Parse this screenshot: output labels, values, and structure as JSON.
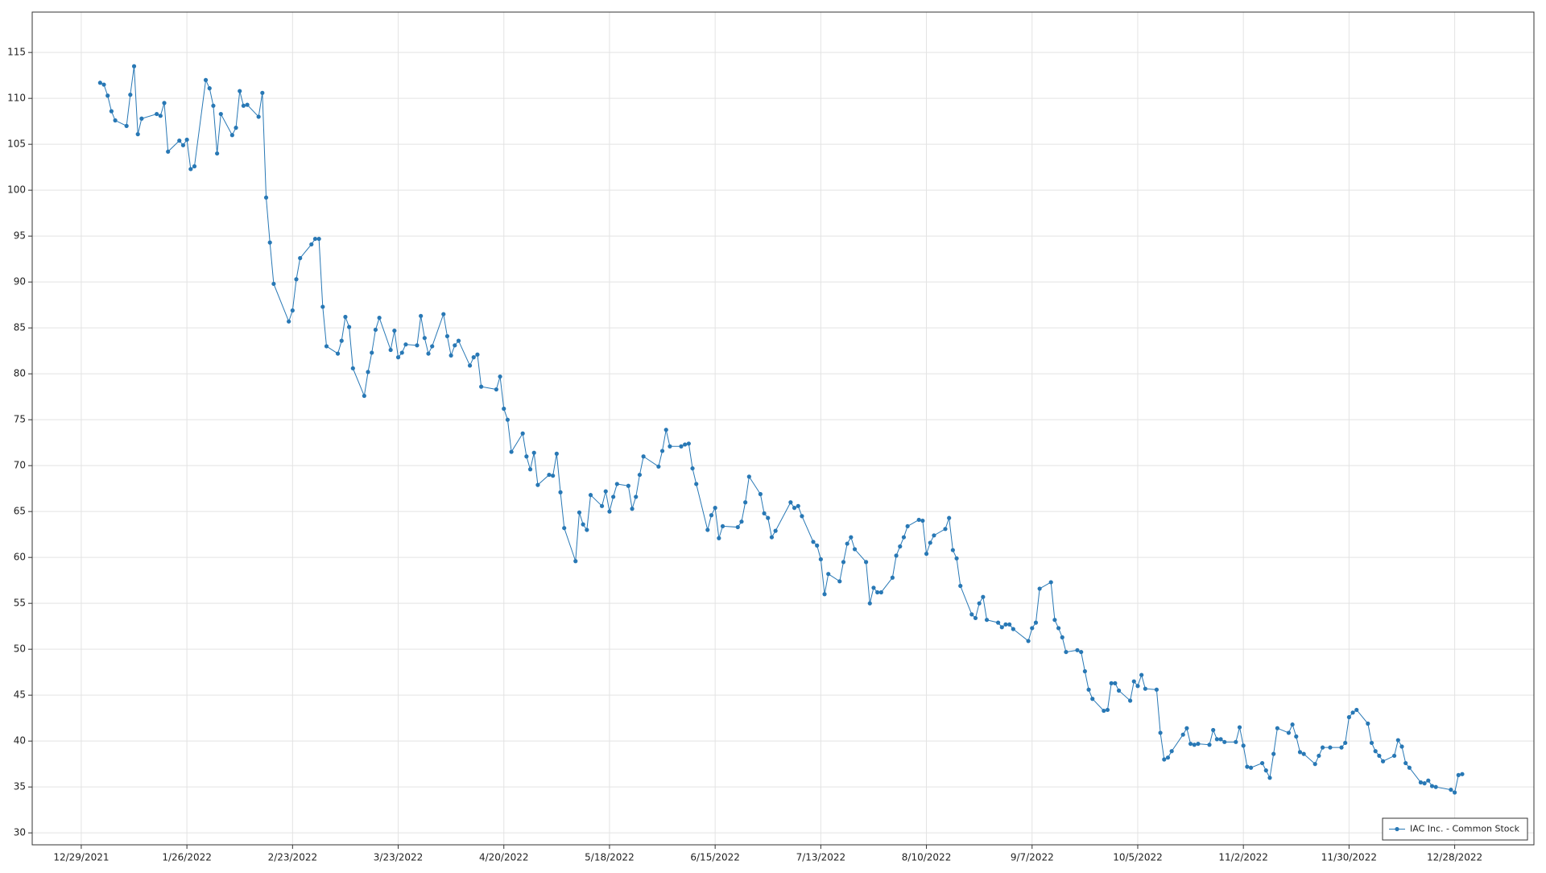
{
  "chart_data": {
    "type": "line",
    "x": [
      "2022-01-03",
      "2022-01-04",
      "2022-01-05",
      "2022-01-06",
      "2022-01-07",
      "2022-01-10",
      "2022-01-11",
      "2022-01-12",
      "2022-01-13",
      "2022-01-14",
      "2022-01-18",
      "2022-01-19",
      "2022-01-20",
      "2022-01-21",
      "2022-01-24",
      "2022-01-25",
      "2022-01-26",
      "2022-01-27",
      "2022-01-28",
      "2022-01-31",
      "2022-02-01",
      "2022-02-02",
      "2022-02-03",
      "2022-02-04",
      "2022-02-07",
      "2022-02-08",
      "2022-02-09",
      "2022-02-10",
      "2022-02-11",
      "2022-02-14",
      "2022-02-15",
      "2022-02-16",
      "2022-02-17",
      "2022-02-18",
      "2022-02-22",
      "2022-02-23",
      "2022-02-24",
      "2022-02-25",
      "2022-02-28",
      "2022-03-01",
      "2022-03-02",
      "2022-03-03",
      "2022-03-04",
      "2022-03-07",
      "2022-03-08",
      "2022-03-09",
      "2022-03-10",
      "2022-03-11",
      "2022-03-14",
      "2022-03-15",
      "2022-03-16",
      "2022-03-17",
      "2022-03-18",
      "2022-03-21",
      "2022-03-22",
      "2022-03-23",
      "2022-03-24",
      "2022-03-25",
      "2022-03-28",
      "2022-03-29",
      "2022-03-30",
      "2022-03-31",
      "2022-04-01",
      "2022-04-04",
      "2022-04-05",
      "2022-04-06",
      "2022-04-07",
      "2022-04-08",
      "2022-04-11",
      "2022-04-12",
      "2022-04-13",
      "2022-04-14",
      "2022-04-18",
      "2022-04-19",
      "2022-04-20",
      "2022-04-21",
      "2022-04-22",
      "2022-04-25",
      "2022-04-26",
      "2022-04-27",
      "2022-04-28",
      "2022-04-29",
      "2022-05-02",
      "2022-05-03",
      "2022-05-04",
      "2022-05-05",
      "2022-05-06",
      "2022-05-09",
      "2022-05-10",
      "2022-05-11",
      "2022-05-12",
      "2022-05-13",
      "2022-05-16",
      "2022-05-17",
      "2022-05-18",
      "2022-05-19",
      "2022-05-20",
      "2022-05-23",
      "2022-05-24",
      "2022-05-25",
      "2022-05-26",
      "2022-05-27",
      "2022-05-31",
      "2022-06-01",
      "2022-06-02",
      "2022-06-03",
      "2022-06-06",
      "2022-06-07",
      "2022-06-08",
      "2022-06-09",
      "2022-06-10",
      "2022-06-13",
      "2022-06-14",
      "2022-06-15",
      "2022-06-16",
      "2022-06-17",
      "2022-06-21",
      "2022-06-22",
      "2022-06-23",
      "2022-06-24",
      "2022-06-27",
      "2022-06-28",
      "2022-06-29",
      "2022-06-30",
      "2022-07-01",
      "2022-07-05",
      "2022-07-06",
      "2022-07-07",
      "2022-07-08",
      "2022-07-11",
      "2022-07-12",
      "2022-07-13",
      "2022-07-14",
      "2022-07-15",
      "2022-07-18",
      "2022-07-19",
      "2022-07-20",
      "2022-07-21",
      "2022-07-22",
      "2022-07-25",
      "2022-07-26",
      "2022-07-27",
      "2022-07-28",
      "2022-07-29",
      "2022-08-01",
      "2022-08-02",
      "2022-08-03",
      "2022-08-04",
      "2022-08-05",
      "2022-08-08",
      "2022-08-09",
      "2022-08-10",
      "2022-08-11",
      "2022-08-12",
      "2022-08-15",
      "2022-08-16",
      "2022-08-17",
      "2022-08-18",
      "2022-08-19",
      "2022-08-22",
      "2022-08-23",
      "2022-08-24",
      "2022-08-25",
      "2022-08-26",
      "2022-08-29",
      "2022-08-30",
      "2022-08-31",
      "2022-09-01",
      "2022-09-02",
      "2022-09-06",
      "2022-09-07",
      "2022-09-08",
      "2022-09-09",
      "2022-09-12",
      "2022-09-13",
      "2022-09-14",
      "2022-09-15",
      "2022-09-16",
      "2022-09-19",
      "2022-09-20",
      "2022-09-21",
      "2022-09-22",
      "2022-09-23",
      "2022-09-26",
      "2022-09-27",
      "2022-09-28",
      "2022-09-29",
      "2022-09-30",
      "2022-10-03",
      "2022-10-04",
      "2022-10-05",
      "2022-10-06",
      "2022-10-07",
      "2022-10-10",
      "2022-10-11",
      "2022-10-12",
      "2022-10-13",
      "2022-10-14",
      "2022-10-17",
      "2022-10-18",
      "2022-10-19",
      "2022-10-20",
      "2022-10-21",
      "2022-10-24",
      "2022-10-25",
      "2022-10-26",
      "2022-10-27",
      "2022-10-28",
      "2022-10-31",
      "2022-11-01",
      "2022-11-02",
      "2022-11-03",
      "2022-11-04",
      "2022-11-07",
      "2022-11-08",
      "2022-11-09",
      "2022-11-10",
      "2022-11-11",
      "2022-11-14",
      "2022-11-15",
      "2022-11-16",
      "2022-11-17",
      "2022-11-18",
      "2022-11-21",
      "2022-11-22",
      "2022-11-23",
      "2022-11-25",
      "2022-11-28",
      "2022-11-29",
      "2022-11-30",
      "2022-12-01",
      "2022-12-02",
      "2022-12-05",
      "2022-12-06",
      "2022-12-07",
      "2022-12-08",
      "2022-12-09",
      "2022-12-12",
      "2022-12-13",
      "2022-12-14",
      "2022-12-15",
      "2022-12-16",
      "2022-12-19",
      "2022-12-20",
      "2022-12-21",
      "2022-12-22",
      "2022-12-23",
      "2022-12-27",
      "2022-12-28",
      "2022-12-29",
      "2022-12-30"
    ],
    "series": [
      {
        "name": "IAC Inc. - Common Stock",
        "color": "#2878b5",
        "values": [
          111.7,
          111.5,
          110.3,
          108.6,
          107.6,
          107.0,
          110.4,
          113.5,
          106.1,
          107.8,
          108.3,
          108.1,
          109.5,
          104.2,
          105.4,
          104.9,
          105.5,
          102.3,
          102.6,
          112.0,
          111.1,
          109.2,
          104.0,
          108.3,
          106.0,
          106.8,
          110.8,
          109.2,
          109.3,
          108.0,
          110.6,
          99.2,
          94.3,
          89.8,
          85.7,
          86.9,
          90.3,
          92.6,
          94.1,
          94.7,
          94.7,
          87.3,
          83.0,
          82.2,
          83.6,
          86.2,
          85.1,
          80.6,
          77.6,
          80.2,
          82.3,
          84.8,
          86.1,
          82.6,
          84.7,
          81.8,
          82.3,
          83.2,
          83.1,
          86.3,
          83.9,
          82.2,
          83.0,
          86.5,
          84.1,
          82.0,
          83.1,
          83.6,
          80.9,
          81.8,
          82.1,
          78.6,
          78.3,
          79.7,
          76.2,
          75.0,
          71.5,
          73.5,
          71.0,
          69.6,
          71.4,
          67.9,
          69.0,
          68.9,
          71.3,
          67.1,
          63.2,
          59.6,
          64.9,
          63.6,
          63.0,
          66.8,
          65.6,
          67.2,
          65.0,
          66.6,
          68.0,
          67.8,
          65.3,
          66.6,
          69.0,
          71.0,
          69.9,
          71.6,
          73.9,
          72.1,
          72.1,
          72.3,
          72.4,
          69.7,
          68.0,
          63.0,
          64.6,
          65.4,
          62.1,
          63.4,
          63.3,
          63.9,
          66.0,
          68.8,
          66.9,
          64.8,
          64.3,
          62.2,
          62.9,
          66.0,
          65.4,
          65.6,
          64.5,
          61.7,
          61.3,
          59.8,
          56.0,
          58.2,
          57.4,
          59.5,
          61.5,
          62.2,
          60.9,
          59.5,
          55.0,
          56.7,
          56.2,
          56.2,
          57.8,
          60.2,
          61.2,
          62.2,
          63.4,
          64.1,
          64.0,
          60.4,
          61.6,
          62.4,
          63.1,
          64.3,
          60.8,
          59.9,
          56.9,
          53.8,
          53.4,
          55.0,
          55.7,
          53.2,
          52.9,
          52.4,
          52.7,
          52.7,
          52.2,
          50.9,
          52.3,
          52.9,
          56.6,
          57.3,
          53.2,
          52.3,
          51.3,
          49.7,
          49.9,
          49.7,
          47.6,
          45.6,
          44.6,
          43.3,
          43.4,
          46.3,
          46.3,
          45.5,
          44.4,
          46.5,
          46.0,
          47.2,
          45.7,
          45.6,
          40.9,
          38.0,
          38.2,
          38.9,
          40.7,
          41.4,
          39.7,
          39.6,
          39.7,
          39.6,
          41.2,
          40.2,
          40.2,
          39.9,
          39.9,
          41.5,
          39.5,
          37.2,
          37.1,
          37.6,
          36.8,
          36.0,
          38.6,
          41.4,
          40.9,
          41.8,
          40.5,
          38.8,
          38.6,
          37.5,
          38.4,
          39.3,
          39.3,
          39.3,
          39.8,
          42.6,
          43.1,
          43.4,
          41.9,
          39.8,
          38.9,
          38.4,
          37.8,
          38.4,
          40.1,
          39.4,
          37.6,
          37.1,
          35.5,
          35.4,
          35.7,
          35.1,
          35.0,
          34.7,
          34.4,
          36.3,
          36.4
        ]
      }
    ],
    "xlim": [
      "2021-12-16",
      "2023-01-18"
    ],
    "xticks": [
      {
        "value": "2021-12-29",
        "label": "12/29/2021"
      },
      {
        "value": "2022-01-26",
        "label": "1/26/2022"
      },
      {
        "value": "2022-02-23",
        "label": "2/23/2022"
      },
      {
        "value": "2022-03-23",
        "label": "3/23/2022"
      },
      {
        "value": "2022-04-20",
        "label": "4/20/2022"
      },
      {
        "value": "2022-05-18",
        "label": "5/18/2022"
      },
      {
        "value": "2022-06-15",
        "label": "6/15/2022"
      },
      {
        "value": "2022-07-13",
        "label": "7/13/2022"
      },
      {
        "value": "2022-08-10",
        "label": "8/10/2022"
      },
      {
        "value": "2022-09-07",
        "label": "9/7/2022"
      },
      {
        "value": "2022-10-05",
        "label": "10/5/2022"
      },
      {
        "value": "2022-11-02",
        "label": "11/2/2022"
      },
      {
        "value": "2022-11-30",
        "label": "11/30/2022"
      },
      {
        "value": "2022-12-28",
        "label": "12/28/2022"
      }
    ],
    "ylim": [
      28.7,
      119.4
    ],
    "yticks": [
      30,
      35,
      40,
      45,
      50,
      55,
      60,
      65,
      70,
      75,
      80,
      85,
      90,
      95,
      100,
      105,
      110,
      115
    ],
    "grid": true,
    "legend": "lower right"
  }
}
